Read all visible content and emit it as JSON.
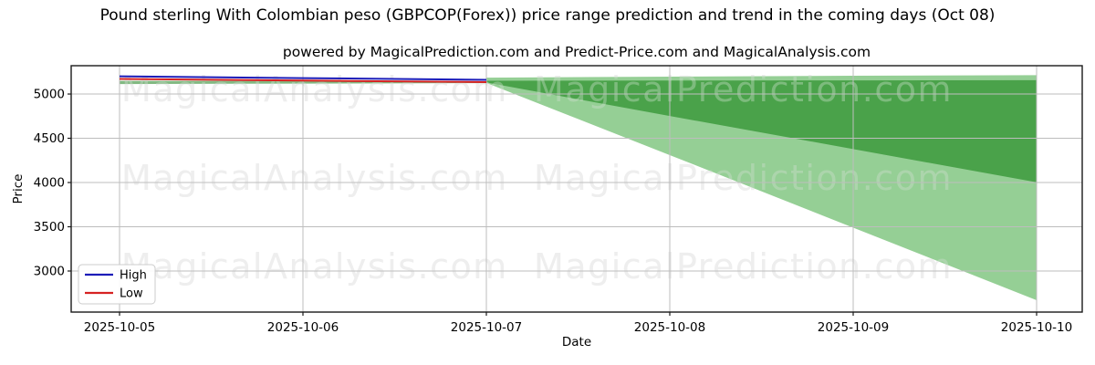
{
  "figure": {
    "title": "Pound sterling With Colombian peso (GBPCOP(Forex)) price range prediction and trend in the coming days (Oct 08)",
    "subtitle": "powered by MagicalPrediction.com and Predict-Price.com and MagicalAnalysis.com"
  },
  "watermarks": {
    "left_text": "MagicalAnalysis.com",
    "right_text": "MagicalPrediction.com",
    "under_color": "#e7e7e7",
    "over_color": "rgba(255,255,255,0.30)"
  },
  "chart_data": {
    "type": "line",
    "title": "Pound sterling With Colombian peso (GBPCOP(Forex)) price range prediction and trend in the coming days (Oct 08)",
    "x": [
      "2025-10-05",
      "2025-10-06",
      "2025-10-07",
      "2025-10-08",
      "2025-10-09",
      "2025-10-10"
    ],
    "xlabel": "Date",
    "ylabel": "Price",
    "yticks": [
      3000,
      3500,
      4000,
      4500,
      5000
    ],
    "ylim": [
      2536,
      5320
    ],
    "grid": true,
    "grid_color": "#bdbdbd",
    "series": [
      {
        "name": "High",
        "color": "#1c1cb8",
        "values": [
          5200,
          5180,
          5160,
          null,
          null,
          null
        ]
      },
      {
        "name": "Low",
        "color": "#d62222",
        "values": [
          5170,
          5152,
          5135,
          null,
          null,
          null
        ]
      }
    ],
    "bands": [
      {
        "name": "history-range",
        "color": "#2e8b2e",
        "opacity": 0.6,
        "x": [
          "2025-10-05",
          "2025-10-06",
          "2025-10-07"
        ],
        "upper": [
          5149,
          5146,
          5143
        ],
        "lower": [
          5113,
          5118,
          5123
        ]
      },
      {
        "name": "forecast-outer-range",
        "color": "#2ca02c",
        "opacity": 0.5,
        "x": [
          "2025-10-07",
          "2025-10-08",
          "2025-10-09",
          "2025-10-10"
        ],
        "upper": [
          5185,
          5196,
          5206,
          5213
        ],
        "lower": [
          5125,
          4310,
          3490,
          2670
        ]
      },
      {
        "name": "forecast-inner-range",
        "color": "#228b22",
        "opacity": 0.65,
        "x": [
          "2025-10-07",
          "2025-10-08",
          "2025-10-09",
          "2025-10-10"
        ],
        "upper": [
          5150,
          5152,
          5154,
          5156
        ],
        "lower": [
          5130,
          4752,
          4378,
          4003
        ]
      }
    ],
    "legend": {
      "position": "lower left",
      "entries": [
        {
          "label": "High",
          "color": "#1c1cb8"
        },
        {
          "label": "Low",
          "color": "#d62222"
        }
      ]
    }
  }
}
